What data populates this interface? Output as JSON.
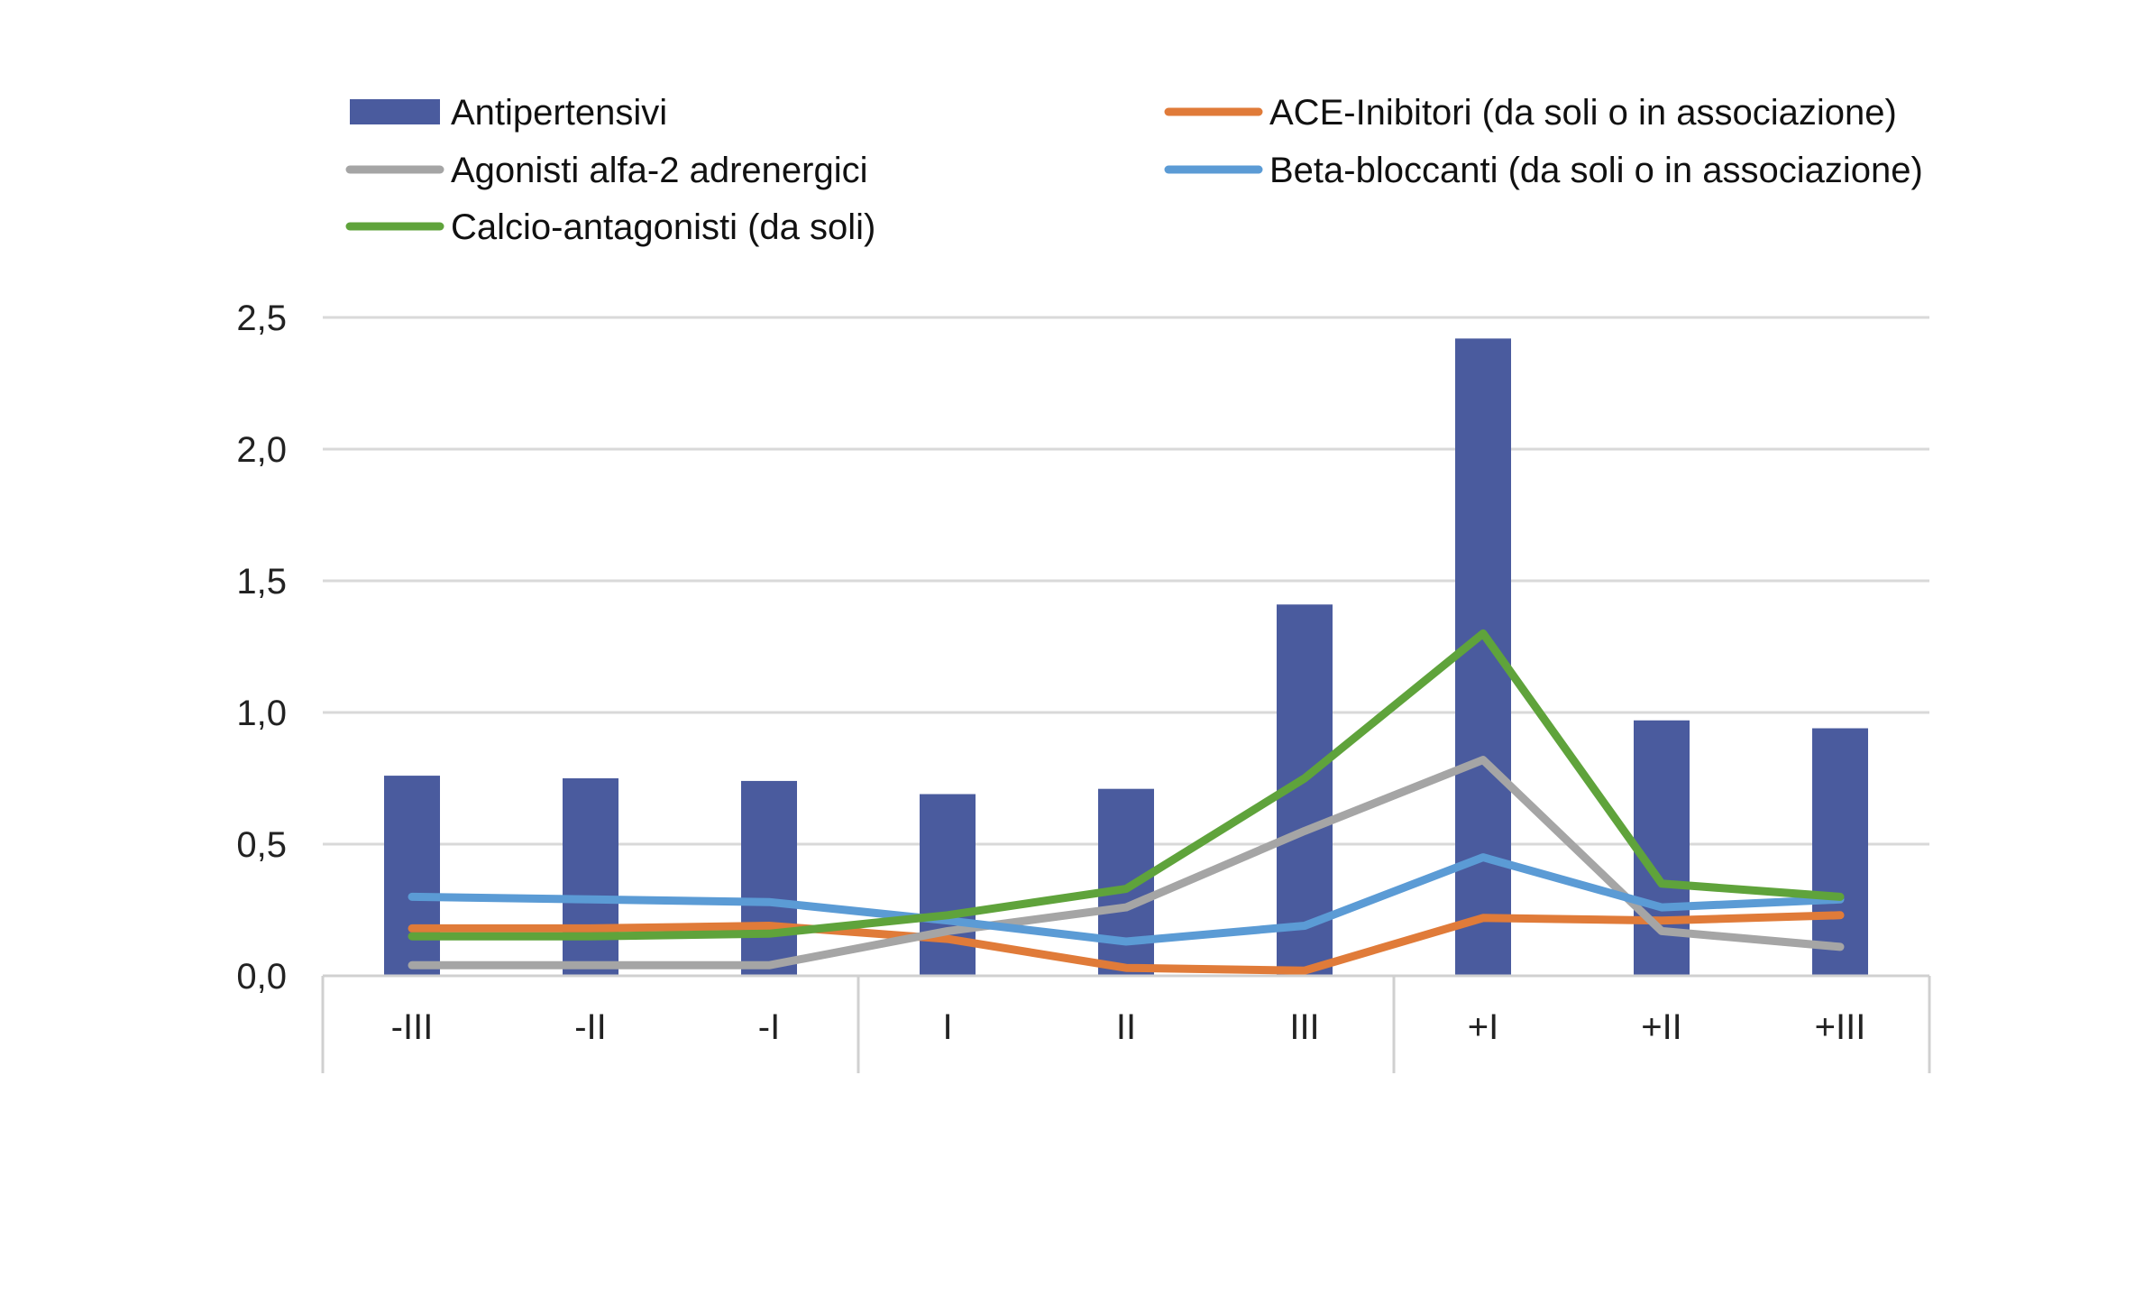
{
  "chart_data": {
    "type": "bar",
    "categories": [
      "-III",
      "-II",
      "-I",
      "I",
      "II",
      "III",
      "+I",
      "+II",
      "+III"
    ],
    "category_groups": [
      [
        "-III",
        "-II",
        "-I"
      ],
      [
        "I",
        "II",
        "III"
      ],
      [
        "+I",
        "+II",
        "+III"
      ]
    ],
    "ylim": [
      0,
      2.5
    ],
    "yticks": [
      "0,0",
      "0,5",
      "1,0",
      "1,5",
      "2,0",
      "2,5"
    ],
    "ytick_values": [
      0,
      0.5,
      1.0,
      1.5,
      2.0,
      2.5
    ],
    "grid": true,
    "legend_position": "top",
    "series": [
      {
        "name": "Antipertensivi",
        "kind": "bar",
        "color": "#4a5b9e",
        "values": [
          0.76,
          0.75,
          0.74,
          0.69,
          0.71,
          1.41,
          2.42,
          0.97,
          0.94
        ]
      },
      {
        "name": "ACE-Inibitori (da soli o in associazione)",
        "kind": "line",
        "color": "#e07b39",
        "values": [
          0.18,
          0.18,
          0.19,
          0.14,
          0.03,
          0.02,
          0.22,
          0.21,
          0.23
        ]
      },
      {
        "name": "Agonisti alfa-2 adrenergici",
        "kind": "line",
        "color": "#a5a5a5",
        "values": [
          0.04,
          0.04,
          0.04,
          0.17,
          0.26,
          0.55,
          0.82,
          0.17,
          0.11
        ]
      },
      {
        "name": "Beta-bloccanti (da soli o in associazione)",
        "kind": "line",
        "color": "#5b9bd5",
        "values": [
          0.3,
          0.29,
          0.28,
          0.21,
          0.13,
          0.19,
          0.45,
          0.26,
          0.29
        ]
      },
      {
        "name": "Calcio-antagonisti (da soli)",
        "kind": "line",
        "color": "#5fa33b",
        "values": [
          0.15,
          0.15,
          0.16,
          0.23,
          0.33,
          0.75,
          1.3,
          0.35,
          0.3
        ]
      }
    ]
  }
}
